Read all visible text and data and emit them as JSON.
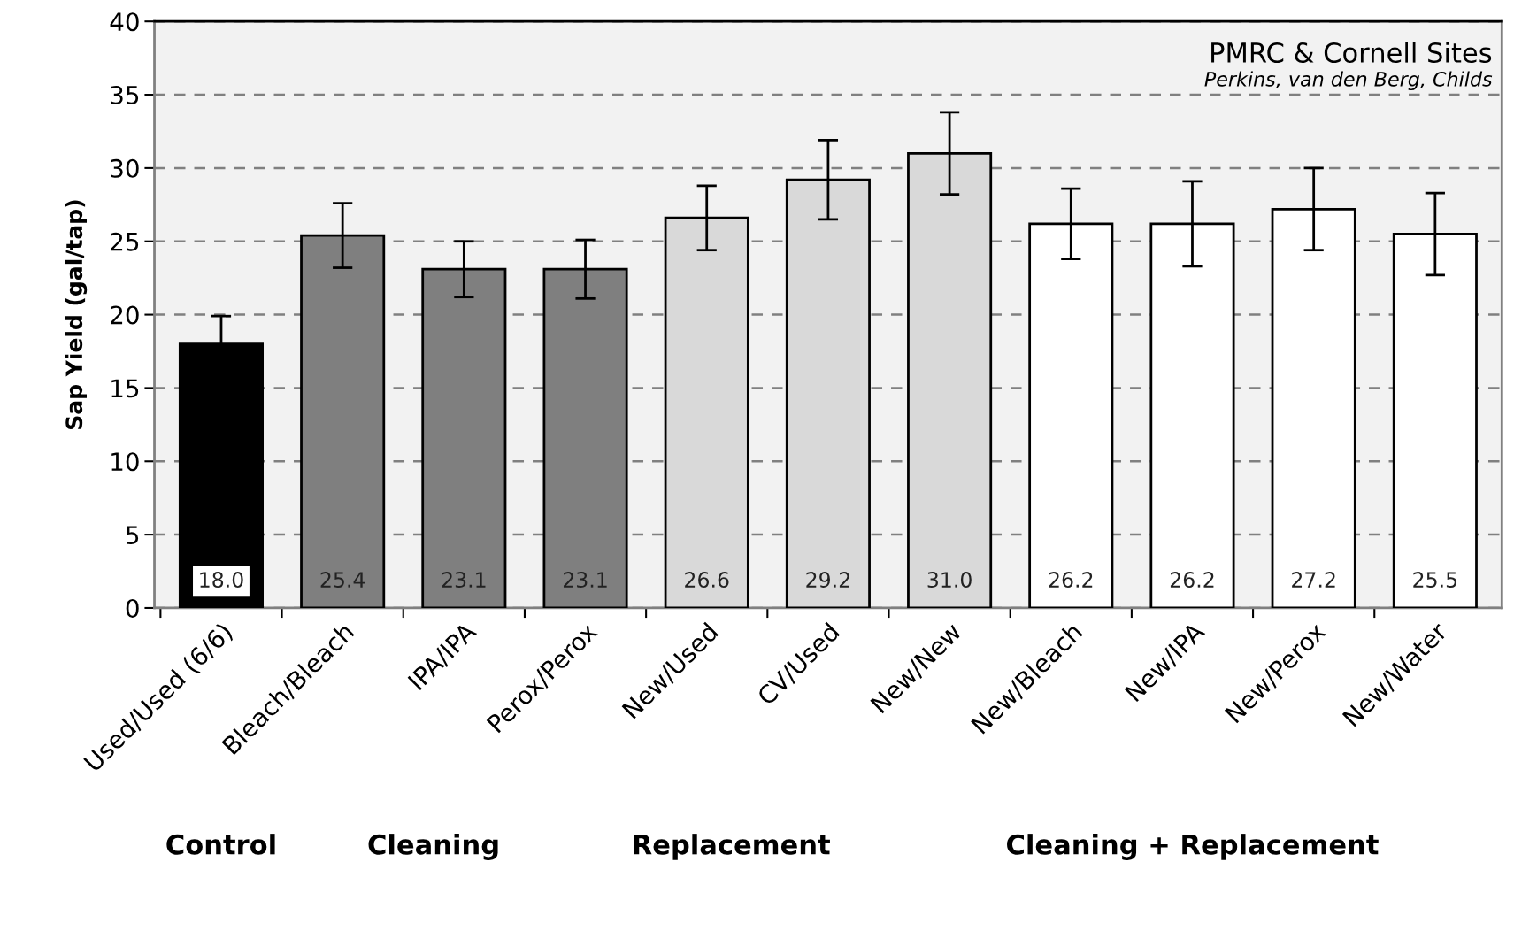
{
  "chart_data": {
    "type": "bar",
    "ylabel": "Sap Yield (gal/tap)",
    "categories": [
      "Used/Used (6/6)",
      "Bleach/Bleach",
      "IPA/IPA",
      "Perox/Perox",
      "New/Used",
      "CV/Used",
      "New/New",
      "New/Bleach",
      "New/IPA",
      "New/Perox",
      "New/Water"
    ],
    "values": [
      18.0,
      25.4,
      23.1,
      23.1,
      26.6,
      29.2,
      31.0,
      26.2,
      26.2,
      27.2,
      25.5
    ],
    "errors": [
      1.9,
      2.2,
      1.9,
      2.0,
      2.2,
      2.7,
      2.8,
      2.4,
      2.9,
      2.8,
      2.8
    ],
    "colors": [
      "#000000",
      "#7f7f7f",
      "#7f7f7f",
      "#7f7f7f",
      "#d9d9d9",
      "#d9d9d9",
      "#d9d9d9",
      "#ffffff",
      "#ffffff",
      "#ffffff",
      "#ffffff"
    ],
    "ylim": [
      0,
      40
    ],
    "yticks": [
      0,
      5,
      10,
      15,
      20,
      25,
      30,
      35,
      40
    ],
    "grid": "y",
    "line_style": "dashed",
    "value_labels": [
      "18.0",
      "25.4",
      "23.1",
      "23.1",
      "26.6",
      "29.2",
      "31.0",
      "26.2",
      "26.2",
      "27.2",
      "25.5"
    ],
    "annotations": [
      "PMRC & Cornell Sites",
      "Perkins, van den Berg, Childs",
      "Control",
      "Cleaning",
      "Replacement",
      "Cleaning + Replacement"
    ]
  }
}
